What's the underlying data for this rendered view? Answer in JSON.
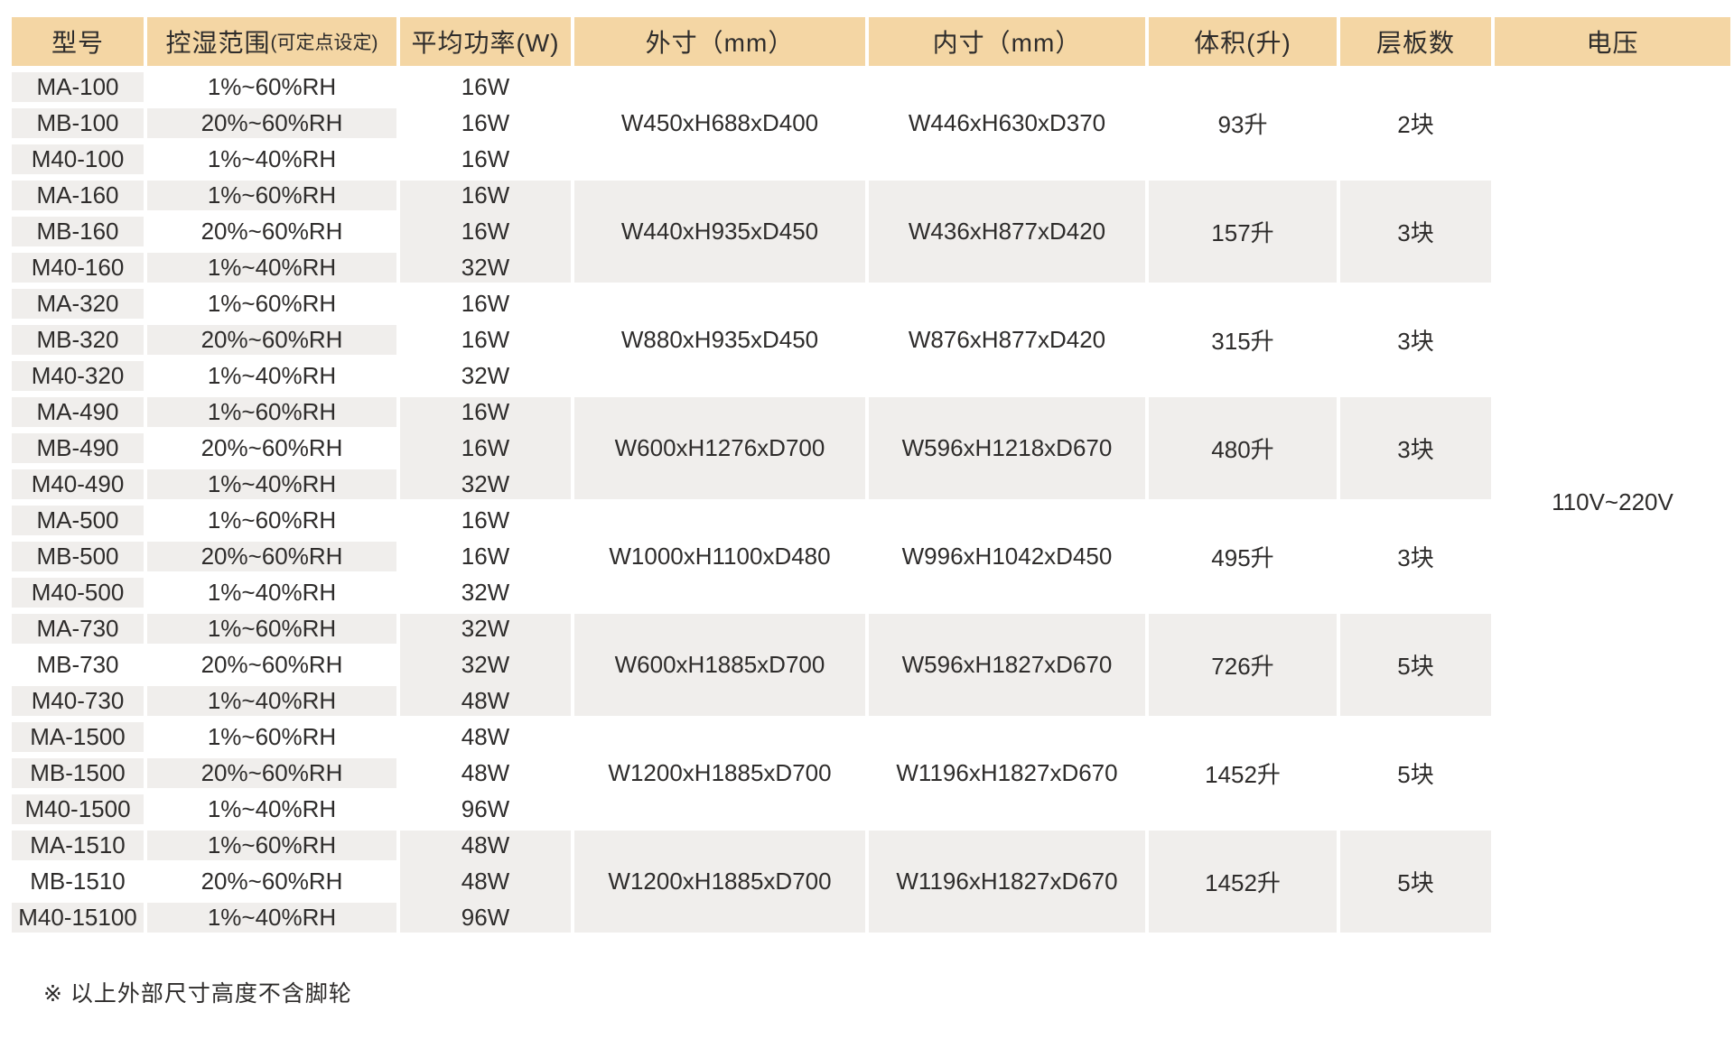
{
  "table": {
    "headers": [
      "型号",
      "控湿范围",
      "平均功率(W)",
      "外寸（mm）",
      "内寸（mm）",
      "体积(升)",
      "层板数",
      "电压"
    ],
    "range_header_note": "(可定点设定)",
    "models": [
      "MA-100",
      "MB-100",
      "M40-100",
      "MA-160",
      "MB-160",
      "M40-160",
      "MA-320",
      "MB-320",
      "M40-320",
      "MA-490",
      "MB-490",
      "M40-490",
      "MA-500",
      "MB-500",
      "M40-500",
      "MA-730",
      "MB-730",
      "M40-730",
      "MA-1500",
      "MB-1500",
      "M40-1500",
      "MA-1510",
      "MB-1510",
      "M40-15100"
    ],
    "ranges": [
      "1%~60%RH",
      "20%~60%RH",
      "1%~40%RH",
      "1%~60%RH",
      "20%~60%RH",
      "1%~40%RH",
      "1%~60%RH",
      "20%~60%RH",
      "1%~40%RH",
      "1%~60%RH",
      "20%~60%RH",
      "1%~40%RH",
      "1%~60%RH",
      "20%~60%RH",
      "1%~40%RH",
      "1%~60%RH",
      "20%~60%RH",
      "1%~40%RH",
      "1%~60%RH",
      "20%~60%RH",
      "1%~40%RH",
      "1%~60%RH",
      "20%~60%RH",
      "1%~40%RH"
    ],
    "powers": [
      "16W",
      "16W",
      "16W",
      "16W",
      "16W",
      "32W",
      "16W",
      "16W",
      "32W",
      "16W",
      "16W",
      "32W",
      "16W",
      "16W",
      "32W",
      "32W",
      "32W",
      "48W",
      "48W",
      "48W",
      "96W",
      "48W",
      "48W",
      "96W"
    ],
    "outer_dims": [
      "W450xH688xD400",
      "W440xH935xD450",
      "W880xH935xD450",
      "W600xH1276xD700",
      "W1000xH1100xD480",
      "W600xH1885xD700",
      "W1200xH1885xD700",
      "W1200xH1885xD700"
    ],
    "inner_dims": [
      "W446xH630xD370",
      "W436xH877xD420",
      "W876xH877xD420",
      "W596xH1218xD670",
      "W996xH1042xD450",
      "W596xH1827xD670",
      "W1196xH1827xD670",
      "W1196xH1827xD670"
    ],
    "volumes": [
      "93升",
      "157升",
      "315升",
      "480升",
      "495升",
      "726升",
      "1452升",
      "1452升"
    ],
    "shelves": [
      "2块",
      "3块",
      "3块",
      "3块",
      "3块",
      "5块",
      "5块",
      "5块"
    ],
    "voltage": "110V~220V"
  },
  "footnote": "※ 以上外部尺寸高度不含脚轮",
  "colors": {
    "header_bg": "#f4d6a4",
    "row_bg": "#f0eeec",
    "text": "#2e2c2b"
  }
}
